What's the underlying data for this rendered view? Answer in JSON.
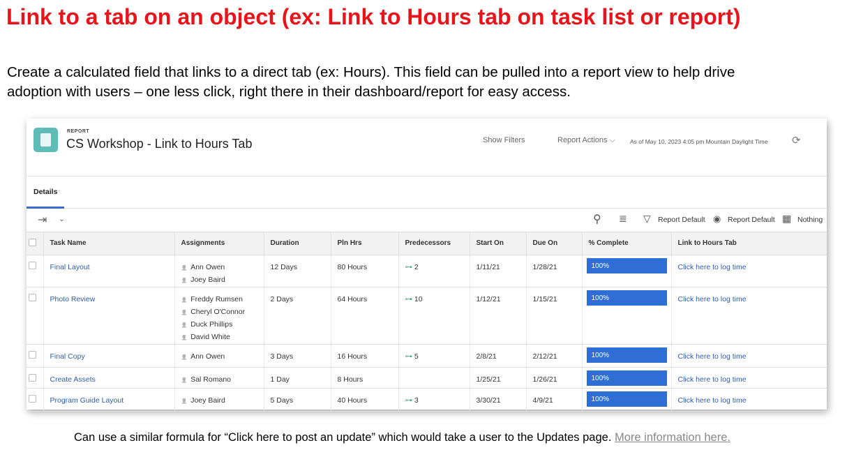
{
  "heading": "Link to a tab on an object (ex: Link to Hours tab on task list or report)",
  "intro_line1": "Create a calculated field that links to a direct tab (ex: Hours). This field can be pulled into a report view to help drive",
  "intro_line2": "adoption with users – one less click, right there in their dashboard/report for easy access.",
  "report": {
    "kicker": "REPORT",
    "title": "CS Workshop - Link to Hours Tab",
    "show_filters": "Show Filters",
    "report_actions": "Report Actions ⌵",
    "as_of": "As of May 10, 2023 4:05 pm Mountain Daylight Time",
    "tab": "Details",
    "toolbar": {
      "filter": "Report Default",
      "view": "Report Default",
      "grouping": "Nothing"
    },
    "columns": [
      "Task Name",
      "Assignments",
      "Duration",
      "Pln Hrs",
      "Predecessors",
      "Start On",
      "Due On",
      "% Complete",
      "Link to Hours Tab"
    ],
    "rows": [
      {
        "task": "Final Layout",
        "assignees": [
          "Ann Owen",
          "Joey Baird"
        ],
        "duration": "12 Days",
        "pln": "80 Hours",
        "pred": "2",
        "start": "1/11/21",
        "due": "1/28/21",
        "pct": "100%",
        "link": "Click here to log time"
      },
      {
        "task": "Photo Review",
        "assignees": [
          "Freddy Rumsen",
          "Cheryl O'Connor",
          "Duck Phillips",
          "David White"
        ],
        "duration": "2 Days",
        "pln": "64 Hours",
        "pred": "10",
        "start": "1/12/21",
        "due": "1/15/21",
        "pct": "100%",
        "link": "Click here to log time"
      },
      {
        "task": "Final Copy",
        "assignees": [
          "Ann Owen"
        ],
        "duration": "3 Days",
        "pln": "16 Hours",
        "pred": "5",
        "start": "2/8/21",
        "due": "2/12/21",
        "pct": "100%",
        "link": "Click here to log time"
      },
      {
        "task": "Create Assets",
        "assignees": [
          "Sal Romano"
        ],
        "duration": "1 Day",
        "pln": "8 Hours",
        "pred": "",
        "start": "1/25/21",
        "due": "1/26/21",
        "pct": "100%",
        "link": "Click here to log time"
      },
      {
        "task": "Program Guide Layout",
        "assignees": [
          "Joey Baird"
        ],
        "duration": "5 Days",
        "pln": "40 Hours",
        "pred": "3",
        "start": "3/30/21",
        "due": "4/9/21",
        "pct": "100%",
        "link": "Click here to log time"
      }
    ]
  },
  "footer": {
    "text": "Can use a similar formula for “Click here to post an update” which would take a user to the Updates page. ",
    "link": "More information here."
  }
}
